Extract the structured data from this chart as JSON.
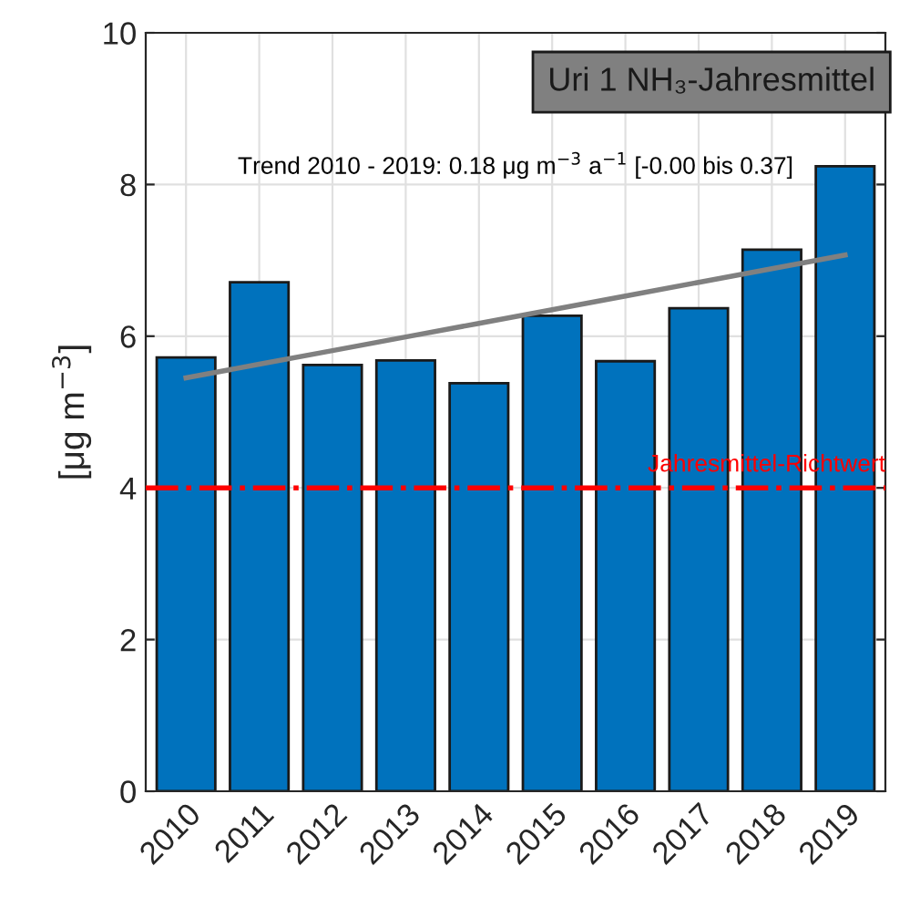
{
  "chart_data": {
    "type": "bar",
    "title": "Uri 1 NH₃-Jahresmittel",
    "ylabel": "[μg m$^{−3}$]",
    "annotations": [
      "Trend 2010 - 2019: 0.18 μg m$^{−3}$ a$^{−1}$ [-0.00 bis 0.37]"
    ],
    "categories": [
      "2010",
      "2011",
      "2012",
      "2013",
      "2014",
      "2015",
      "2016",
      "2017",
      "2018",
      "2019"
    ],
    "series": [
      {
        "color": "#0072bd",
        "values": [
          5.72,
          6.71,
          5.62,
          5.68,
          5.38,
          6.27,
          5.67,
          6.37,
          7.14,
          8.24
        ]
      },
      {
        "type": "line",
        "color": "#808080",
        "values": [
          5.45,
          5.63,
          5.81,
          5.99,
          6.17,
          6.35,
          6.53,
          6.71,
          6.89,
          7.07
        ]
      }
    ],
    "ylim": [
      0,
      10
    ],
    "yticks": [
      0,
      2,
      4,
      6,
      8,
      10
    ],
    "grid": true,
    "ref_lines": [
      {
        "axis": "y",
        "value": 4,
        "label": "Jahresmittel-Richtwert",
        "color": "#ff0000",
        "line_style": "dashdot"
      }
    ]
  }
}
